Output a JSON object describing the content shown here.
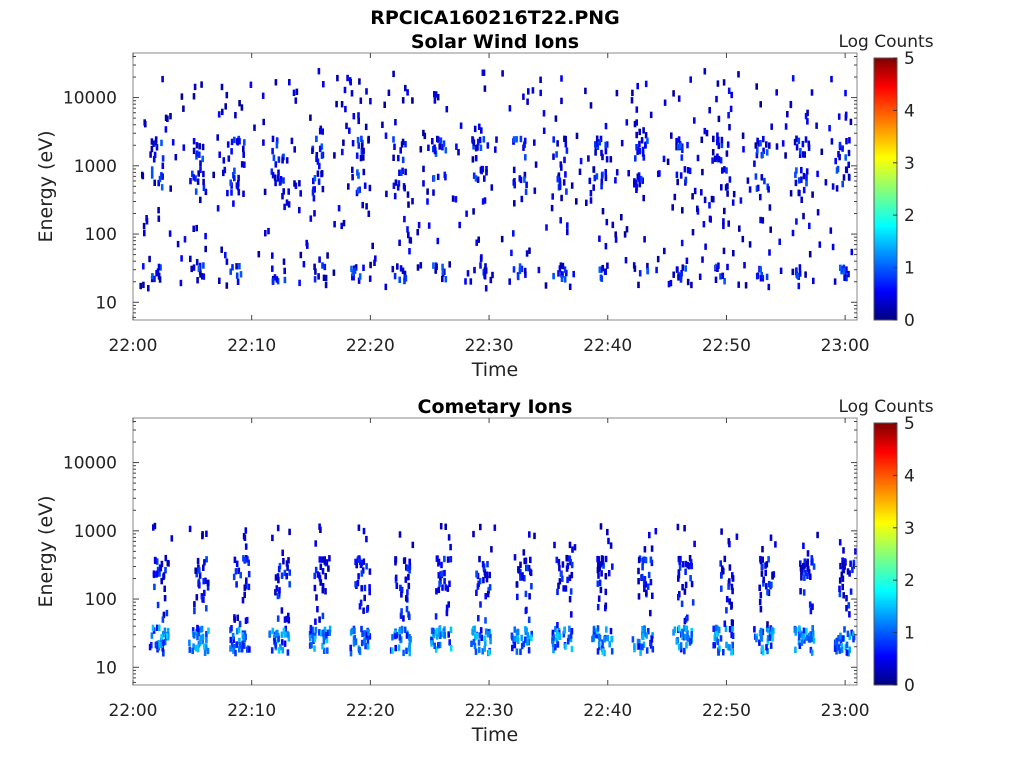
{
  "figure_title": "RPCICA160216T22.PNG",
  "chart_data": [
    {
      "type": "heatmap",
      "title": "Solar Wind Ions",
      "xlabel": "Time",
      "ylabel": "Energy (eV)",
      "x_ticks": [
        "22:00",
        "22:10",
        "22:20",
        "22:30",
        "22:40",
        "22:50",
        "23:00"
      ],
      "x_range_minutes": [
        0,
        61
      ],
      "y_scale": "log",
      "y_ticks": [
        10,
        100,
        1000,
        10000
      ],
      "y_tick_labels": [
        "10",
        "100",
        "1000",
        "10000"
      ],
      "y_range": [
        5.5,
        45000
      ],
      "colorbar": {
        "label": "Log Counts",
        "range": [
          0,
          5
        ],
        "ticks": [
          "0",
          "1",
          "2",
          "3",
          "4",
          "5"
        ],
        "colormap": "jet"
      },
      "description_of_pattern": "Sparse dots across energies with periodic clusters near ~25 eV, ~500-2000 eV repeating roughly every 3.4 minutes; values mostly 0-1.5 log counts",
      "grid": false
    },
    {
      "type": "heatmap",
      "title": "Cometary Ions",
      "xlabel": "Time",
      "ylabel": "Energy (eV)",
      "x_ticks": [
        "22:00",
        "22:10",
        "22:20",
        "22:30",
        "22:40",
        "22:50",
        "23:00"
      ],
      "x_range_minutes": [
        0,
        61
      ],
      "y_scale": "log",
      "y_ticks": [
        10,
        100,
        1000,
        10000
      ],
      "y_tick_labels": [
        "10",
        "100",
        "1000",
        "10000"
      ],
      "y_range": [
        5.5,
        45000
      ],
      "colorbar": {
        "label": "Log Counts",
        "range": [
          0,
          5
        ],
        "ticks": [
          "0",
          "1",
          "2",
          "3",
          "4",
          "5"
        ],
        "colormap": "jet"
      },
      "description_of_pattern": "Periodic vertical bursts every ~3.4 minutes spanning ~15-400 eV, strongest (log counts ~1-1.5) near 20-40 eV",
      "grid": false
    }
  ]
}
